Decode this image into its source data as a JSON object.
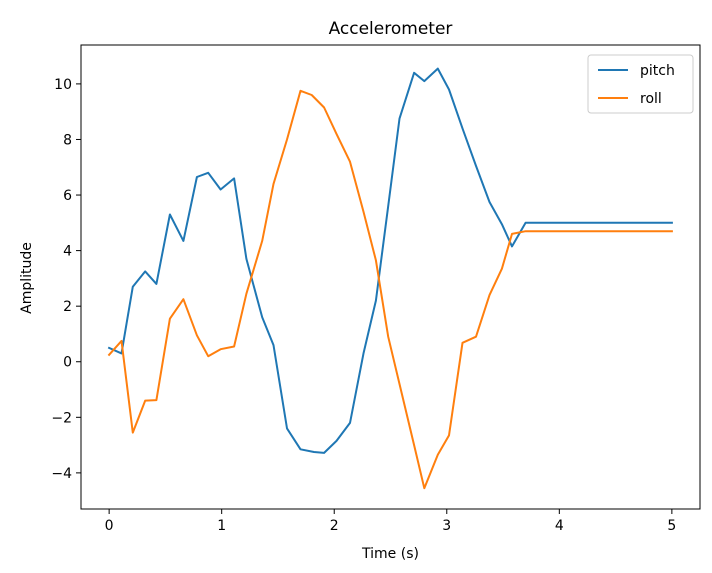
{
  "chart_data": {
    "type": "line",
    "title": "Accelerometer",
    "xlabel": "Time (s)",
    "ylabel": "Amplitude",
    "xlim": [
      -0.25,
      5.25
    ],
    "ylim": [
      -5.3,
      11.4
    ],
    "xticks": [
      0,
      1,
      2,
      3,
      4,
      5
    ],
    "yticks": [
      -4,
      -2,
      0,
      2,
      4,
      6,
      8,
      10
    ],
    "ytick_labels": [
      "−4",
      "−2",
      "0",
      "2",
      "4",
      "6",
      "8",
      "10"
    ],
    "grid": false,
    "legend_position": "top-right",
    "series": [
      {
        "name": "pitch",
        "color": "#1f77b4",
        "x": [
          0.0,
          0.11,
          0.21,
          0.32,
          0.42,
          0.54,
          0.66,
          0.78,
          0.88,
          0.99,
          1.11,
          1.22,
          1.36,
          1.46,
          1.58,
          1.7,
          1.82,
          1.91,
          2.02,
          2.14,
          2.26,
          2.37,
          2.48,
          2.58,
          2.71,
          2.8,
          2.92,
          3.02,
          3.14,
          3.26,
          3.38,
          3.49,
          3.58,
          3.7,
          3.8,
          3.9,
          4.0,
          4.2,
          4.4,
          4.6,
          4.8,
          5.0
        ],
        "y": [
          0.5,
          0.3,
          2.7,
          3.25,
          2.8,
          5.3,
          4.35,
          6.65,
          6.8,
          6.2,
          6.6,
          3.7,
          1.6,
          0.6,
          -2.4,
          -3.15,
          -3.25,
          -3.28,
          -2.85,
          -2.2,
          0.3,
          2.2,
          5.6,
          8.75,
          10.4,
          10.1,
          10.55,
          9.8,
          8.4,
          7.05,
          5.75,
          4.95,
          4.15,
          5.0,
          5.0,
          5.0,
          5.0,
          5.0,
          5.0,
          5.0,
          5.0,
          5.0
        ]
      },
      {
        "name": "roll",
        "color": "#ff7f0e",
        "x": [
          0.0,
          0.11,
          0.21,
          0.32,
          0.42,
          0.54,
          0.66,
          0.78,
          0.88,
          0.99,
          1.11,
          1.22,
          1.36,
          1.46,
          1.58,
          1.7,
          1.8,
          1.91,
          2.02,
          2.14,
          2.26,
          2.37,
          2.48,
          2.58,
          2.71,
          2.8,
          2.92,
          3.02,
          3.14,
          3.26,
          3.38,
          3.49,
          3.58,
          3.7,
          3.8,
          3.9,
          4.0,
          4.2,
          4.4,
          4.6,
          4.8,
          5.0
        ],
        "y": [
          0.25,
          0.75,
          -2.55,
          -1.4,
          -1.38,
          1.55,
          2.25,
          0.95,
          0.2,
          0.45,
          0.55,
          2.45,
          4.35,
          6.4,
          8.0,
          9.75,
          9.6,
          9.15,
          8.2,
          7.2,
          5.4,
          3.65,
          0.9,
          -0.8,
          -3.0,
          -4.55,
          -3.35,
          -2.65,
          0.68,
          0.9,
          2.4,
          3.35,
          4.6,
          4.7,
          4.7,
          4.7,
          4.7,
          4.7,
          4.7,
          4.7,
          4.7,
          4.7
        ]
      }
    ]
  }
}
